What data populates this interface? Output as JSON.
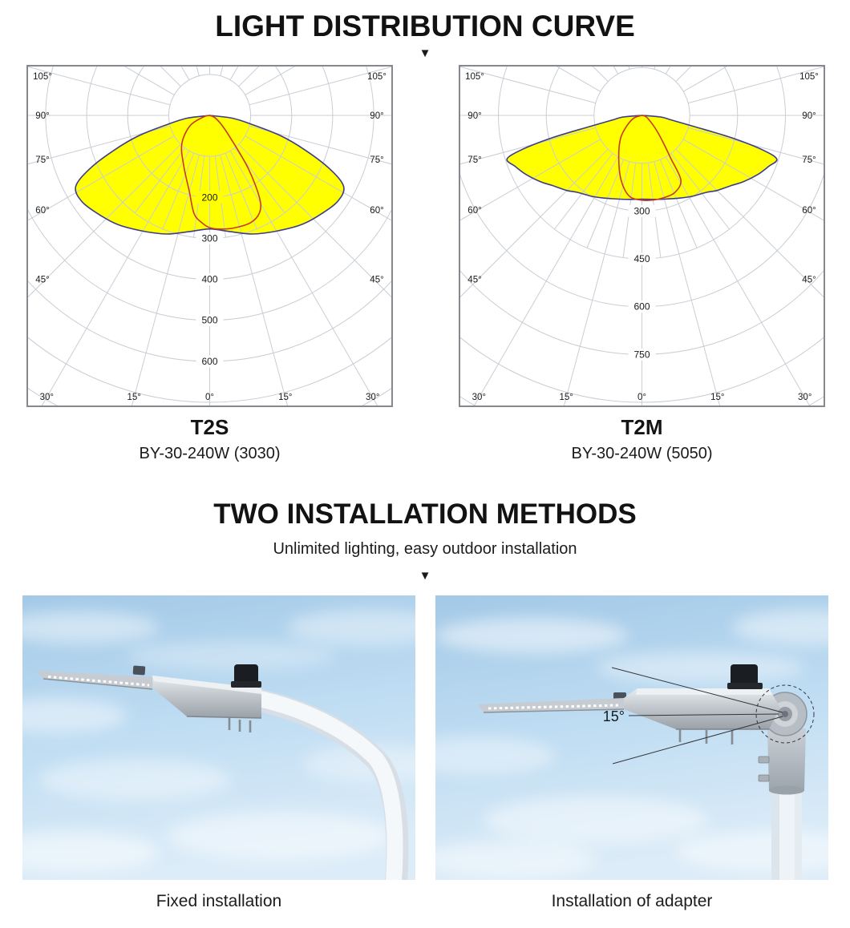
{
  "colors": {
    "yellow": "#ffff00",
    "curve_outline": "#3c3c8c",
    "red_curve": "#c53b22",
    "grid": "#c9cdd4",
    "frame": "#85898d",
    "label_text": "#1a1a1a"
  },
  "header": {
    "title": "LIGHT DISTRIBUTION CURVE",
    "arrow_icon": "▼"
  },
  "installation_section": {
    "title": "TWO INSTALLATION METHODS",
    "subtitle": "Unlimited lighting, easy outdoor installation",
    "arrow_icon": "▼"
  },
  "installations": [
    {
      "caption": "Fixed installation"
    },
    {
      "caption": "Installation of adapter",
      "angle_label": "15°"
    }
  ],
  "chart_data": [
    {
      "type": "line",
      "coordinate_system": "polar",
      "title": "T2S",
      "subtitle": "BY-30-240W (3030)",
      "angle_unit": "deg",
      "side_angle_ticks": [
        105,
        90,
        75,
        60,
        45
      ],
      "bottom_angle_ticks": [
        -30,
        -15,
        0,
        15,
        30
      ],
      "rings": {
        "step": 100,
        "max": 700
      },
      "radial_tick_labels": [
        200,
        300,
        400,
        500,
        600
      ],
      "series": [
        {
          "id": "wide-beam-filled",
          "style": "filled-yellow",
          "points": [
            [
              -90,
              0
            ],
            [
              -83,
              55
            ],
            [
              -78,
              105
            ],
            [
              -74,
              180
            ],
            [
              -70,
              248
            ],
            [
              -66,
              320
            ],
            [
              -62,
              370
            ],
            [
              -56,
              376
            ],
            [
              -48,
              362
            ],
            [
              -40,
              348
            ],
            [
              -30,
              326
            ],
            [
              -20,
              308
            ],
            [
              -10,
              288
            ],
            [
              0,
              277
            ],
            [
              10,
              288
            ],
            [
              20,
              308
            ],
            [
              30,
              326
            ],
            [
              40,
              348
            ],
            [
              48,
              362
            ],
            [
              56,
              376
            ],
            [
              62,
              370
            ],
            [
              66,
              320
            ],
            [
              70,
              248
            ],
            [
              74,
              180
            ],
            [
              78,
              105
            ],
            [
              83,
              55
            ],
            [
              90,
              0
            ]
          ]
        },
        {
          "id": "narrow-beam-red",
          "style": "red-line",
          "points": [
            [
              -90,
              0
            ],
            [
              -76,
              16
            ],
            [
              -62,
              55
            ],
            [
              -44,
              98
            ],
            [
              -27,
              139
            ],
            [
              -15,
              192
            ],
            [
              -9,
              243
            ],
            [
              -4,
              263
            ],
            [
              0,
              274
            ],
            [
              6,
              279
            ],
            [
              13,
              281
            ],
            [
              21,
              280
            ],
            [
              27,
              267
            ],
            [
              31,
              237
            ],
            [
              36,
              160
            ],
            [
              43,
              72
            ],
            [
              53,
              34
            ],
            [
              68,
              12
            ],
            [
              90,
              0
            ]
          ]
        }
      ]
    },
    {
      "type": "line",
      "coordinate_system": "polar",
      "title": "T2M",
      "subtitle": "BY-30-240W (5050)",
      "angle_unit": "deg",
      "side_angle_ticks": [
        105,
        90,
        75,
        60,
        45
      ],
      "bottom_angle_ticks": [
        -30,
        -15,
        0,
        15,
        30
      ],
      "rings": {
        "step": 150,
        "max": 900
      },
      "radial_tick_labels": [
        300,
        450,
        600,
        750
      ],
      "series": [
        {
          "id": "wide-beam-filled",
          "style": "filled-yellow",
          "points": [
            [
              -90,
              0
            ],
            [
              -85,
              60
            ],
            [
              -81,
              95
            ],
            [
              -78,
              165
            ],
            [
              -76,
              290
            ],
            [
              -74,
              395
            ],
            [
              -72,
              445
            ],
            [
              -68,
              428
            ],
            [
              -63,
              408
            ],
            [
              -57,
              381
            ],
            [
              -52,
              357
            ],
            [
              -45,
              333
            ],
            [
              -40,
              315
            ],
            [
              -32,
              299
            ],
            [
              -25,
              286
            ],
            [
              -15,
              272
            ],
            [
              -8,
              266
            ],
            [
              0,
              263
            ],
            [
              8,
              266
            ],
            [
              15,
              272
            ],
            [
              25,
              286
            ],
            [
              32,
              299
            ],
            [
              40,
              315
            ],
            [
              45,
              333
            ],
            [
              52,
              357
            ],
            [
              57,
              381
            ],
            [
              63,
              408
            ],
            [
              68,
              428
            ],
            [
              72,
              445
            ],
            [
              74,
              395
            ],
            [
              76,
              290
            ],
            [
              78,
              165
            ],
            [
              81,
              95
            ],
            [
              85,
              60
            ],
            [
              90,
              0
            ]
          ]
        },
        {
          "id": "narrow-beam-red",
          "style": "red-line",
          "points": [
            [
              -90,
              0
            ],
            [
              -72,
              26
            ],
            [
              -55,
              58
            ],
            [
              -43,
              98
            ],
            [
              -29,
              150
            ],
            [
              -18,
              212
            ],
            [
              -9,
              256
            ],
            [
              0,
              266
            ],
            [
              8,
              268
            ],
            [
              15,
              267
            ],
            [
              23,
              263
            ],
            [
              31,
              237
            ],
            [
              34,
              160
            ],
            [
              39,
              100
            ],
            [
              46,
              58
            ],
            [
              62,
              22
            ],
            [
              78,
              8
            ],
            [
              90,
              0
            ]
          ]
        }
      ]
    }
  ]
}
